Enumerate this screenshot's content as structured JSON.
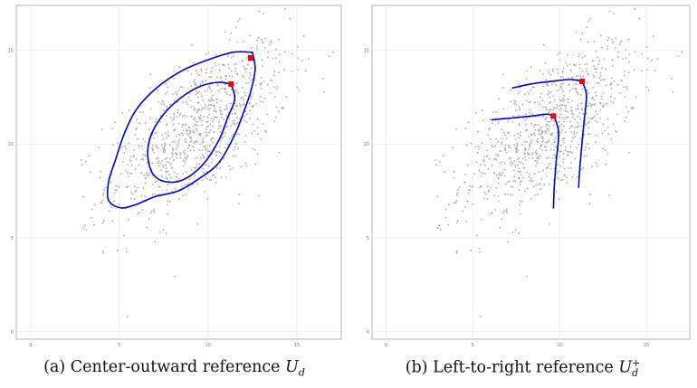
{
  "panels": [
    {
      "id": "a",
      "caption": {
        "prefix": "(a) Center-outward reference ",
        "symbol": "U",
        "sub": "d",
        "sup": ""
      }
    },
    {
      "id": "b",
      "caption": {
        "prefix": "(b) Left-to-right reference ",
        "symbol": "U",
        "sub": "d",
        "sup": "+"
      }
    }
  ],
  "chart_data": [
    {
      "type": "scatter",
      "title": "",
      "xlabel": "",
      "ylabel": "",
      "xlim": [
        -0.8,
        17.5
      ],
      "ylim": [
        -0.4,
        17.4
      ],
      "x_ticks": [
        0,
        5,
        10,
        15
      ],
      "y_ticks": [
        0,
        5,
        10,
        15
      ],
      "grid": true,
      "scatter_description_color": "#a9a9a9",
      "points_sample_count": 900,
      "distribution": {
        "mean": [
          9.4,
          10.8
        ],
        "sd": [
          2.55,
          2.35
        ],
        "corr": 0.62
      },
      "curves": [
        {
          "name": "",
          "color": "#0000cc",
          "closed": true,
          "points": [
            [
              12.5,
              14.9
            ],
            [
              12.65,
              14.0
            ],
            [
              12.4,
              12.8
            ],
            [
              12.0,
              11.7
            ],
            [
              11.5,
              10.5
            ],
            [
              10.6,
              9.0
            ],
            [
              9.4,
              8.1
            ],
            [
              8.3,
              7.5
            ],
            [
              7.0,
              7.2
            ],
            [
              6.0,
              6.8
            ],
            [
              5.1,
              6.6
            ],
            [
              4.4,
              7.0
            ],
            [
              4.4,
              8.0
            ],
            [
              4.8,
              9.2
            ],
            [
              5.3,
              10.6
            ],
            [
              6.0,
              11.9
            ],
            [
              7.1,
              13.0
            ],
            [
              8.5,
              13.9
            ],
            [
              10.0,
              14.5
            ],
            [
              11.4,
              14.9
            ],
            [
              12.5,
              14.9
            ]
          ]
        },
        {
          "name": "",
          "color": "#0000cc",
          "closed": true,
          "points": [
            [
              11.3,
              13.2
            ],
            [
              11.5,
              12.4
            ],
            [
              11.1,
              11.4
            ],
            [
              10.6,
              10.2
            ],
            [
              9.7,
              8.9
            ],
            [
              8.6,
              8.1
            ],
            [
              7.6,
              8.0
            ],
            [
              6.9,
              8.4
            ],
            [
              6.6,
              9.4
            ],
            [
              6.8,
              10.5
            ],
            [
              7.5,
              11.6
            ],
            [
              8.5,
              12.5
            ],
            [
              9.6,
              13.1
            ],
            [
              10.6,
              13.3
            ],
            [
              11.3,
              13.2
            ]
          ]
        }
      ],
      "highlight_points": [
        [
          12.4,
          14.6
        ],
        [
          11.3,
          13.2
        ]
      ]
    },
    {
      "type": "scatter",
      "title": "",
      "xlabel": "",
      "ylabel": "",
      "xlim": [
        -0.8,
        17.5
      ],
      "ylim": [
        -0.4,
        17.4
      ],
      "x_ticks": [
        0,
        5,
        10,
        15
      ],
      "y_ticks": [
        0,
        5,
        10,
        15
      ],
      "grid": true,
      "points_sample_count": 900,
      "distribution": {
        "mean": [
          9.4,
          10.8
        ],
        "sd": [
          2.55,
          2.35
        ],
        "corr": 0.62
      },
      "curves": [
        {
          "name": "",
          "color": "#0000cc",
          "closed": false,
          "points": [
            [
              7.3,
              13.0
            ],
            [
              8.3,
              13.2
            ],
            [
              9.5,
              13.35
            ],
            [
              10.6,
              13.45
            ],
            [
              11.3,
              13.35
            ]
          ]
        },
        {
          "name": "",
          "color": "#0000cc",
          "closed": false,
          "points": [
            [
              11.3,
              13.35
            ],
            [
              11.55,
              12.6
            ],
            [
              11.4,
              11.1
            ],
            [
              11.25,
              9.6
            ],
            [
              11.15,
              8.5
            ],
            [
              11.1,
              7.7
            ]
          ]
        },
        {
          "name": "",
          "color": "#0000cc",
          "closed": false,
          "points": [
            [
              6.1,
              11.3
            ],
            [
              7.3,
              11.4
            ],
            [
              8.4,
              11.5
            ],
            [
              9.3,
              11.6
            ],
            [
              9.7,
              11.45
            ]
          ]
        },
        {
          "name": "",
          "color": "#0000cc",
          "closed": false,
          "points": [
            [
              9.7,
              11.45
            ],
            [
              9.95,
              10.6
            ],
            [
              9.8,
              9.0
            ],
            [
              9.7,
              7.8
            ],
            [
              9.65,
              6.6
            ]
          ]
        }
      ],
      "highlight_points": [
        [
          11.3,
          13.35
        ],
        [
          9.65,
          11.5
        ]
      ]
    }
  ]
}
